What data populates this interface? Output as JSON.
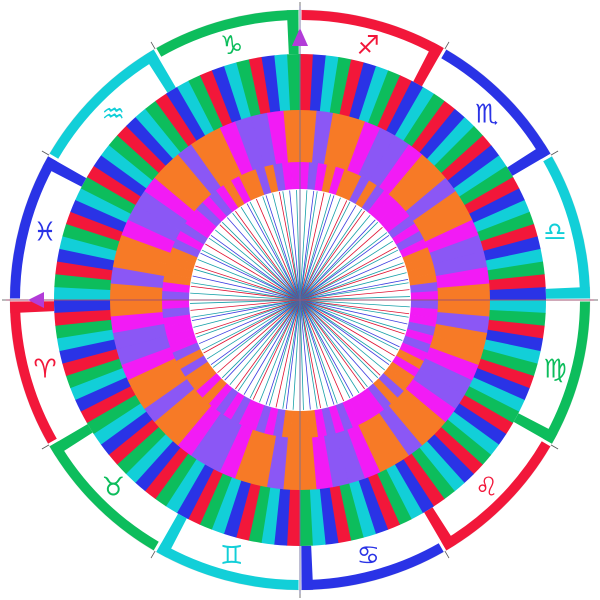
{
  "colors": {
    "red": "#f2173a",
    "blue": "#2a33e6",
    "cyan": "#12cfd8",
    "green": "#0dbd5c",
    "orange": "#f77a26",
    "magenta": "#f21bf5",
    "violet": "#8b57f5",
    "line_red": "#e01030",
    "line_teal": "#16a0a8",
    "line_blue": "#3b3be0",
    "marker": "#b23cd8",
    "tick": "#555555"
  },
  "signs": [
    {
      "name": "capricorn",
      "glyph": "♑",
      "color": "green"
    },
    {
      "name": "sagittarius",
      "glyph": "♐",
      "color": "red"
    },
    {
      "name": "scorpio",
      "glyph": "♏",
      "color": "blue"
    },
    {
      "name": "libra",
      "glyph": "♎",
      "color": "cyan"
    },
    {
      "name": "virgo",
      "glyph": "♍",
      "color": "green"
    },
    {
      "name": "leo",
      "glyph": "♌",
      "color": "red"
    },
    {
      "name": "cancer",
      "glyph": "♋",
      "color": "blue"
    },
    {
      "name": "gemini",
      "glyph": "♊",
      "color": "cyan"
    },
    {
      "name": "taurus",
      "glyph": "♉",
      "color": "green"
    },
    {
      "name": "aries",
      "glyph": "♈",
      "color": "red"
    },
    {
      "name": "pisces",
      "glyph": "♓",
      "color": "blue"
    },
    {
      "name": "aquarius",
      "glyph": "♒",
      "color": "cyan"
    }
  ],
  "outer_ring_cycle": [
    "red",
    "blue",
    "cyan",
    "green"
  ],
  "middle_ring_cycle": [
    "orange",
    "magenta",
    "violet",
    "magenta",
    "orange",
    "violet"
  ],
  "inner_ring_cycle": [
    "magenta",
    "violet",
    "orange",
    "violet",
    "magenta",
    "orange",
    "magenta"
  ],
  "spoke_cycle": [
    "line_red",
    "line_teal",
    "line_blue",
    "line_teal"
  ]
}
